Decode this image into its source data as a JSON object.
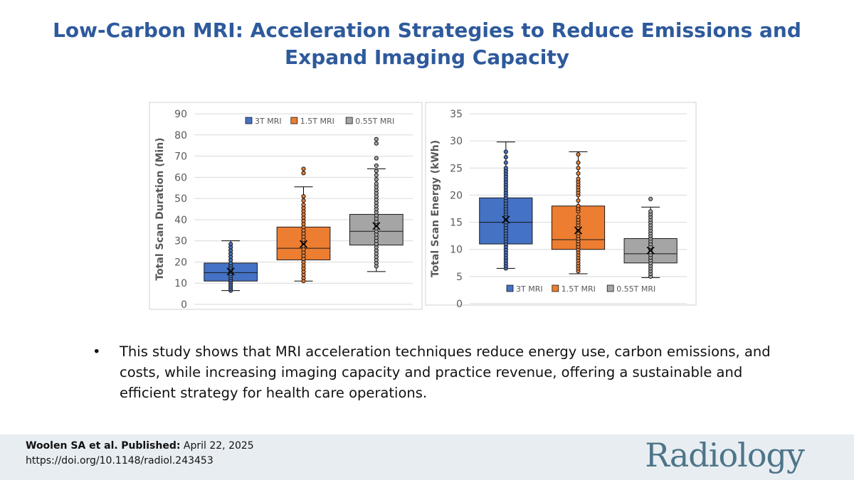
{
  "title": "Low-Carbon MRI: Acceleration Strategies to Reduce Emissions and Expand Imaging Capacity",
  "title_lines": [
    "Low-Carbon MRI: Acceleration Strategies to Reduce Emissions and",
    "Expand Imaging Capacity"
  ],
  "colors": {
    "title": "#2e5a9c",
    "s3T": "#4472c4",
    "s15T": "#ed7d31",
    "s055T": "#a5a5a5",
    "footer_bg": "#e8edf2",
    "journal": "#4d7589"
  },
  "chart_data": [
    {
      "type": "box",
      "ylabel": "Total Scan Duration (Min)",
      "xlabel": "",
      "ylim": [
        0,
        90
      ],
      "yticks": [
        0,
        10,
        20,
        30,
        40,
        50,
        60,
        70,
        80,
        90
      ],
      "legend_position": "top",
      "legend": [
        "3T MRI",
        "1.5T MRI",
        "0.55T MRI"
      ],
      "series": [
        {
          "name": "3T MRI",
          "min": 6.5,
          "q1": 11,
          "median": 15,
          "q3": 19.5,
          "max": 30,
          "mean": 15.5,
          "points": [
            6.5,
            7.5,
            8.5,
            9.5,
            10.5,
            11.5,
            12.5,
            13.5,
            14.5,
            15.5,
            16.5,
            17.5,
            18.5,
            19.5,
            21,
            22.5,
            24,
            25.5,
            27,
            28.5
          ]
        },
        {
          "name": "1.5T MRI",
          "min": 11,
          "q1": 21,
          "median": 26.5,
          "q3": 36.5,
          "max": 55.5,
          "mean": 28.5,
          "points": [
            11,
            12.5,
            14,
            15.5,
            17,
            18.5,
            20,
            21.5,
            23,
            24.5,
            26,
            27.5,
            29,
            30.5,
            32,
            33.5,
            35,
            36.5,
            38,
            39.5,
            41,
            42.5,
            44,
            45.5,
            47,
            49,
            51,
            62,
            64
          ]
        },
        {
          "name": "0.55T MRI",
          "min": 15.5,
          "q1": 28,
          "median": 34.5,
          "q3": 42.5,
          "max": 64,
          "mean": 37,
          "points": [
            18,
            19.5,
            21,
            22.5,
            24,
            25.5,
            27,
            28.5,
            30,
            31.5,
            33,
            34.5,
            36,
            37.5,
            39,
            40.5,
            42,
            43.5,
            45,
            46.5,
            48,
            49.5,
            51,
            52.5,
            54,
            55.5,
            57,
            59,
            61,
            63,
            65.5,
            69,
            76,
            78
          ]
        }
      ]
    },
    {
      "type": "box",
      "ylabel": "Total Scan Energy (kWh)",
      "xlabel": "",
      "ylim": [
        0,
        35
      ],
      "yticks": [
        0,
        5,
        10,
        15,
        20,
        25,
        30,
        35
      ],
      "legend_position": "bottom",
      "legend": [
        "3T MRI",
        "1.5T MRI",
        "0.55T MRI"
      ],
      "series": [
        {
          "name": "3T MRI",
          "min": 6.5,
          "q1": 11,
          "median": 15,
          "q3": 19.5,
          "max": 29.8,
          "mean": 15.5,
          "points": [
            6.5,
            7,
            7.5,
            8,
            8.5,
            9,
            9.5,
            10,
            10.5,
            11,
            11.5,
            12,
            12.5,
            13,
            13.5,
            14,
            14.5,
            15,
            15.5,
            16,
            16.5,
            17,
            17.5,
            18,
            18.5,
            19,
            19.5,
            20,
            20.5,
            21,
            21.5,
            22,
            22.5,
            23,
            23.5,
            24,
            24.5,
            25,
            26,
            27,
            28
          ]
        },
        {
          "name": "1.5T MRI",
          "min": 5.5,
          "q1": 10,
          "median": 11.8,
          "q3": 18,
          "max": 28,
          "mean": 13.5,
          "points": [
            6,
            6.5,
            7,
            7.5,
            8,
            8.5,
            9,
            9.5,
            10,
            10.5,
            11,
            11.5,
            12,
            12.5,
            13,
            13.5,
            14,
            14.5,
            15,
            15.5,
            16,
            17,
            17.5,
            18,
            19,
            20,
            20.5,
            21,
            21.5,
            22,
            22.5,
            23,
            24,
            25,
            26,
            27.5
          ]
        },
        {
          "name": "0.55T MRI",
          "min": 4.8,
          "q1": 7.5,
          "median": 9.2,
          "q3": 12,
          "max": 17.8,
          "mean": 9.8,
          "points": [
            5,
            5.5,
            6,
            6.5,
            7,
            7.5,
            8,
            8.5,
            9,
            9.5,
            10,
            10.5,
            11,
            11.5,
            12,
            12.5,
            13,
            13.5,
            14,
            14.5,
            15,
            15.5,
            16,
            16.5,
            17,
            19.3
          ]
        }
      ]
    }
  ],
  "bullets": [
    "This study shows that MRI acceleration techniques reduce energy use, carbon emissions, and costs, while increasing imaging capacity and practice revenue, offering a sustainable and efficient strategy for health care operations."
  ],
  "bullet_symbol": "•",
  "citation": {
    "authors": "Woolen SA et al.",
    "published_label": "Published:",
    "date": "April 22, 2025",
    "doi": "https://doi.org/10.1148/radiol.243453"
  },
  "journal": "Radiology"
}
